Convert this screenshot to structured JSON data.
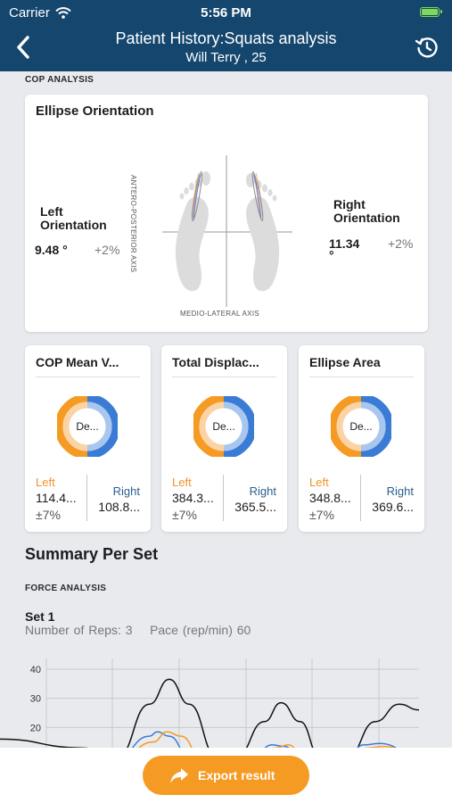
{
  "status_bar": {
    "carrier": "Carrier",
    "time": "5:56 PM"
  },
  "header": {
    "title": "Patient History:Squats analysis",
    "subtitle": "Will Terry , 25"
  },
  "cop_analysis": {
    "section_label": "COP ANALYSIS",
    "ellipse_orientation": {
      "title": "Ellipse Orientation",
      "left": {
        "label": "Left Orientation",
        "value": "9.48 °",
        "change": "+2%"
      },
      "right": {
        "label": "Right Orientation",
        "value_line1": "11.34",
        "value_line2": "°",
        "change": "+2%"
      },
      "vertical_axis": "ANTERO-POSTERIOR AXIS",
      "horizontal_axis": "MEDIO-LATERAL AXIS"
    },
    "metrics": [
      {
        "title": "COP Mean V...",
        "center": "De...",
        "left_label": "Left",
        "left_value": "114.4...",
        "left_change": "±7%",
        "right_label": "Right",
        "right_value": "108.8..."
      },
      {
        "title": "Total Displac...",
        "center": "De...",
        "left_label": "Left",
        "left_value": "384.3...",
        "left_change": "±7%",
        "right_label": "Right",
        "right_value": "365.5..."
      },
      {
        "title": "Ellipse Area",
        "center": "De...",
        "left_label": "Left",
        "left_value": "348.8...",
        "left_change": "±7%",
        "right_label": "Right",
        "right_value": "369.6..."
      }
    ]
  },
  "summary": {
    "title": "Summary Per Set",
    "force_label": "FORCE ANALYSIS",
    "set": {
      "title": "Set 1",
      "reps_label": "Number of Reps: 3",
      "pace_label": "Pace (rep/min) 60"
    }
  },
  "chart_data": {
    "type": "line",
    "y_ticks": [
      "40",
      "30",
      "20"
    ],
    "ylim": [
      10,
      40
    ],
    "grid": true,
    "series": [
      {
        "color": "#111111",
        "points": [
          [
            0,
            16
          ],
          [
            45,
            13
          ],
          [
            90,
            10
          ],
          [
            130,
            28
          ],
          [
            155,
            36.5
          ],
          [
            180,
            28
          ],
          [
            215,
            10
          ],
          [
            240,
            10
          ],
          [
            275,
            22
          ],
          [
            296,
            28.5
          ],
          [
            320,
            22
          ],
          [
            345,
            10
          ],
          [
            380,
            10
          ],
          [
            415,
            22
          ],
          [
            445,
            28
          ],
          [
            470,
            26
          ]
        ]
      },
      {
        "color": "#3a7bd5",
        "points": [
          [
            0,
            10
          ],
          [
            90,
            10
          ],
          [
            130,
            17
          ],
          [
            140,
            18.5
          ],
          [
            155,
            17
          ],
          [
            180,
            10
          ],
          [
            260,
            10
          ],
          [
            285,
            14
          ],
          [
            300,
            13.5
          ],
          [
            320,
            10
          ],
          [
            380,
            10
          ],
          [
            400,
            14
          ],
          [
            420,
            14.5
          ],
          [
            470,
            10
          ]
        ]
      },
      {
        "color": "#f59a23",
        "points": [
          [
            0,
            10
          ],
          [
            95,
            10
          ],
          [
            135,
            15
          ],
          [
            152,
            18.5
          ],
          [
            170,
            17
          ],
          [
            195,
            10
          ],
          [
            265,
            10
          ],
          [
            290,
            13
          ],
          [
            305,
            14
          ],
          [
            325,
            10
          ],
          [
            385,
            10
          ],
          [
            405,
            13
          ],
          [
            425,
            13.5
          ],
          [
            470,
            10
          ]
        ]
      }
    ]
  },
  "bottom": {
    "export_label": "Export result"
  },
  "colors": {
    "navy": "#14466e",
    "orange": "#f59a23",
    "blue": "#3a7bd5",
    "light_blue": "#a9c7ee",
    "light_orange": "#fbd3a5"
  }
}
